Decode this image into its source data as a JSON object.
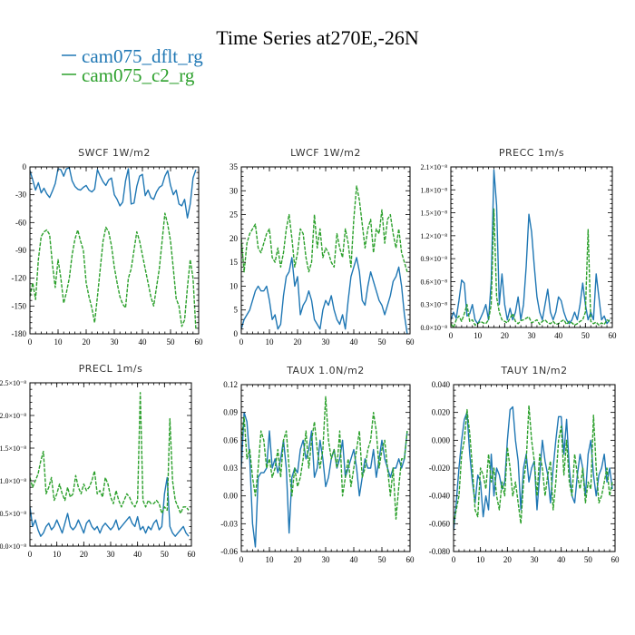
{
  "title": "Time Series at270E,-26N",
  "legend": [
    {
      "name": "cam075_dflt_rg",
      "color": "#1f77b4",
      "dash": "solid"
    },
    {
      "name": "cam075_c2_rg",
      "color": "#2ca02c",
      "dash": "dashed"
    }
  ],
  "chart_data": [
    {
      "type": "line",
      "title": "SWCF   1W/m2",
      "xlim": [
        0,
        60
      ],
      "ylim": [
        -180,
        0
      ],
      "xticks": [
        0,
        10,
        20,
        30,
        40,
        50,
        60
      ],
      "yticks": [
        -180,
        -150,
        -120,
        -90,
        -60,
        -30,
        0
      ],
      "ytick_labels": [
        "-180",
        "-150",
        "-120",
        "-90",
        "-60",
        "-30",
        "0"
      ],
      "series": [
        {
          "name": "cam075_dflt_rg",
          "color": "#1f77b4",
          "dash": "solid",
          "values": [
            -4,
            -14,
            -25,
            -17,
            -28,
            -23,
            -29,
            -33,
            -26,
            -18,
            -2,
            -3,
            -10,
            -2,
            -1,
            -15,
            -21,
            -24,
            -25,
            -22,
            -20,
            -25,
            -27,
            -24,
            -3,
            -10,
            -16,
            -20,
            -14,
            -12,
            -30,
            -35,
            -42,
            -38,
            -15,
            -2,
            -40,
            -39,
            -21,
            -10,
            -8,
            -31,
            -25,
            -33,
            -35,
            -27,
            -22,
            -20,
            -10,
            -4,
            -20,
            -30,
            -25,
            -40,
            -42,
            -35,
            -55,
            -40,
            -12,
            -3
          ]
        },
        {
          "name": "cam075_c2_rg",
          "color": "#2ca02c",
          "dash": "dashed",
          "values": [
            -140,
            -125,
            -143,
            -100,
            -75,
            -70,
            -68,
            -73,
            -105,
            -130,
            -100,
            -120,
            -147,
            -135,
            -120,
            -95,
            -78,
            -68,
            -80,
            -90,
            -125,
            -140,
            -152,
            -168,
            -140,
            -110,
            -80,
            -65,
            -70,
            -85,
            -108,
            -125,
            -140,
            -148,
            -152,
            -120,
            -110,
            -90,
            -70,
            -80,
            -95,
            -110,
            -125,
            -140,
            -150,
            -130,
            -110,
            -80,
            -50,
            -62,
            -80,
            -110,
            -142,
            -150,
            -172,
            -165,
            -130,
            -100,
            -120,
            -175
          ]
        }
      ]
    },
    {
      "type": "line",
      "title": "LWCF   1W/m2",
      "xlim": [
        0,
        60
      ],
      "ylim": [
        0,
        35
      ],
      "xticks": [
        0,
        10,
        20,
        30,
        40,
        50,
        60
      ],
      "yticks": [
        0,
        5,
        10,
        15,
        20,
        25,
        30,
        35
      ],
      "ytick_labels": [
        "0",
        "5",
        "10",
        "15",
        "20",
        "25",
        "30",
        "35"
      ],
      "series": [
        {
          "name": "cam075_dflt_rg",
          "color": "#1f77b4",
          "dash": "solid",
          "values": [
            1,
            3,
            4,
            5,
            7,
            9,
            10,
            9,
            9,
            10,
            7,
            3,
            4,
            1,
            2,
            8,
            12,
            13,
            16,
            10,
            12,
            4,
            6,
            7,
            9,
            7,
            3,
            2,
            1,
            5,
            7,
            6,
            8,
            5,
            3,
            2,
            4,
            1,
            7,
            12,
            14,
            16,
            13,
            7,
            6,
            10,
            13,
            11,
            9,
            7,
            6,
            4,
            6,
            8,
            11,
            12,
            14,
            10,
            4,
            0
          ]
        },
        {
          "name": "cam075_c2_rg",
          "color": "#2ca02c",
          "dash": "dashed",
          "values": [
            20,
            13,
            19,
            21,
            22,
            23,
            18,
            17,
            19,
            21,
            22,
            16,
            15,
            18,
            14,
            17,
            22,
            25,
            20,
            14,
            17,
            22,
            21,
            16,
            13,
            15,
            25,
            18,
            22,
            16,
            18,
            17,
            15,
            14,
            21,
            18,
            16,
            22,
            19,
            14,
            24,
            31,
            28,
            23,
            18,
            22,
            24,
            17,
            22,
            21,
            26,
            19,
            24,
            25,
            21,
            18,
            22,
            17,
            15,
            13
          ]
        }
      ]
    },
    {
      "type": "line",
      "title": "PRECC   1m/s",
      "xlim": [
        0,
        60
      ],
      "ylim": [
        0,
        2.1e-08
      ],
      "xticks": [
        0,
        10,
        20,
        30,
        40,
        50,
        60
      ],
      "yticks": [
        0,
        3e-09,
        6e-09,
        9e-09,
        1.2e-08,
        1.5e-08,
        1.8e-08,
        2.1e-08
      ],
      "ytick_labels": [
        "0.0×10⁻⁸",
        "0.3×10⁻⁸",
        "0.6×10⁻⁸",
        "0.9×10⁻⁸",
        "1.2×10⁻⁸",
        "1.5×10⁻⁸",
        "1.8×10⁻⁸",
        "2.1×10⁻⁸"
      ],
      "series": [
        {
          "name": "cam075_dflt_rg",
          "color": "#1f77b4",
          "dash": "solid",
          "values": [
            1e-09,
            2e-09,
            1.2e-09,
            3.5e-09,
            6.2e-09,
            5.8e-09,
            1.5e-09,
            1.8e-09,
            3e-09,
            1e-09,
            5e-10,
            1.2e-09,
            2e-09,
            3e-09,
            1e-09,
            6e-09,
            2.06e-08,
            1.6e-08,
            3e-09,
            7e-09,
            3e-09,
            1e-09,
            2.5e-09,
            1e-09,
            2e-09,
            4e-09,
            1e-09,
            3e-09,
            8e-09,
            1.48e-08,
            1.25e-08,
            8e-09,
            4e-09,
            2e-09,
            1e-09,
            3e-09,
            5e-09,
            2e-09,
            1e-09,
            2e-09,
            4e-09,
            3.5e-09,
            2e-09,
            1e-09,
            5e-10,
            1e-09,
            2e-09,
            1e-09,
            3e-09,
            5.8e-09,
            3e-09,
            1e-09,
            2e-09,
            1e-09,
            7e-09,
            4e-09,
            1e-09,
            1.5e-09,
            5e-10,
            1e-09
          ]
        },
        {
          "name": "cam075_c2_rg",
          "color": "#2ca02c",
          "dash": "dashed",
          "values": [
            5e-10,
            0.0,
            1e-09,
            1.5e-09,
            8e-10,
            1.8e-09,
            3e-09,
            8e-10,
            1e-09,
            3e-10,
            5e-10,
            8e-10,
            6e-10,
            5e-10,
            1e-09,
            3e-09,
            1.55e-08,
            4e-09,
            2e-09,
            1e-09,
            8e-10,
            6e-10,
            1.2e-09,
            1.8e-09,
            8e-10,
            5e-10,
            9e-10,
            1e-09,
            1.2e-09,
            1.4e-09,
            6e-10,
            8e-10,
            1e-09,
            4e-10,
            8e-10,
            1e-09,
            6e-10,
            5e-10,
            8e-10,
            4e-10,
            5e-10,
            8e-10,
            1e-09,
            4e-10,
            8e-10,
            6e-10,
            3e-10,
            5e-10,
            8e-10,
            1e-09,
            2e-09,
            1.28e-08,
            8e-10,
            5e-10,
            7e-10,
            3e-10,
            6e-10,
            4e-10,
            1e-09,
            8e-10
          ]
        }
      ]
    },
    {
      "type": "line",
      "title": "PRECL   1m/s",
      "xlim": [
        0,
        60
      ],
      "ylim": [
        0,
        2.5e-08
      ],
      "xticks": [
        0,
        10,
        20,
        30,
        40,
        50,
        60
      ],
      "yticks": [
        0,
        5e-09,
        1e-08,
        1.5e-08,
        2e-08,
        2.5e-08
      ],
      "ytick_labels": [
        "0.0×10⁻⁸",
        "0.5×10⁻⁸",
        "1.0×10⁻⁸",
        "1.5×10⁻⁸",
        "2.0×10⁻⁸",
        "2.5×10⁻⁸"
      ],
      "series": [
        {
          "name": "cam075_dflt_rg",
          "color": "#1f77b4",
          "dash": "solid",
          "values": [
            6e-09,
            3e-09,
            4e-09,
            2.5e-09,
            1.5e-09,
            2e-09,
            3e-09,
            3.5e-09,
            2.5e-09,
            3e-09,
            4e-09,
            3e-09,
            2e-09,
            3.5e-09,
            5e-09,
            3e-09,
            2.5e-09,
            3e-09,
            4e-09,
            3e-09,
            2e-09,
            3.5e-09,
            4e-09,
            3e-09,
            2.5e-09,
            3e-09,
            2e-09,
            3e-09,
            3.5e-09,
            3e-09,
            2.5e-09,
            3e-09,
            4e-09,
            2.5e-09,
            3e-09,
            3.5e-09,
            4e-09,
            4.5e-09,
            3.5e-09,
            3e-09,
            4.5e-09,
            2.5e-09,
            3e-09,
            2e-09,
            3e-09,
            2.5e-09,
            3.5e-09,
            4e-09,
            2.5e-09,
            3e-09,
            8e-09,
            1.05e-08,
            3e-09,
            2e-09,
            1.5e-09,
            2e-09,
            2.5e-09,
            3e-09,
            2e-09,
            1.5e-09
          ]
        },
        {
          "name": "cam075_c2_rg",
          "color": "#2ca02c",
          "dash": "dashed",
          "values": [
            1.05e-08,
            9e-09,
            1e-08,
            1.1e-08,
            1.3e-08,
            1.45e-08,
            8e-09,
            9e-09,
            1.05e-08,
            7e-09,
            8e-09,
            9.5e-09,
            8e-09,
            7e-09,
            9e-09,
            7.5e-09,
            8e-09,
            1.08e-08,
            9e-09,
            8e-09,
            9.5e-09,
            8.5e-09,
            9e-09,
            1e-08,
            1.15e-08,
            8e-09,
            8.5e-09,
            7.5e-09,
            1.05e-08,
            9.5e-09,
            7.5e-09,
            6.5e-09,
            8.5e-09,
            7e-09,
            6e-09,
            7e-09,
            8e-09,
            7.5e-09,
            6.5e-09,
            6e-09,
            7e-09,
            2.35e-08,
            7e-09,
            6e-09,
            7e-09,
            6.5e-09,
            6.5e-09,
            7e-09,
            6.5e-09,
            5e-09,
            6e-09,
            5.5e-09,
            1.95e-08,
            1e-08,
            7e-09,
            6e-09,
            5e-09,
            6e-09,
            6e-09,
            5.5e-09
          ]
        }
      ]
    },
    {
      "type": "line",
      "title": "TAUX   1.0N/m2",
      "xlim": [
        0,
        60
      ],
      "ylim": [
        -0.06,
        0.12
      ],
      "xticks": [
        0,
        10,
        20,
        30,
        40,
        50,
        60
      ],
      "yticks": [
        -0.06,
        -0.03,
        0.0,
        0.03,
        0.06,
        0.09,
        0.12
      ],
      "ytick_labels": [
        "-0.06",
        "-0.03",
        "0.00",
        "0.03",
        "0.06",
        "0.09",
        "0.12"
      ],
      "series": [
        {
          "name": "cam075_dflt_rg",
          "color": "#1f77b4",
          "dash": "solid",
          "values": [
            0.03,
            0.09,
            0.08,
            0.04,
            -0.03,
            -0.055,
            0.02,
            0.025,
            0.025,
            0.03,
            0.07,
            0.03,
            0.04,
            0.025,
            0.04,
            0.06,
            0.03,
            -0.04,
            0.02,
            0.03,
            0.025,
            0.05,
            0.06,
            0.04,
            0.05,
            0.07,
            0.02,
            0.03,
            0.06,
            0.04,
            0.01,
            0.02,
            0.04,
            0.05,
            0.03,
            0.04,
            0.06,
            0.02,
            0.03,
            0.04,
            0.05,
            0.03,
            0.0,
            0.02,
            0.04,
            0.03,
            0.03,
            0.05,
            0.02,
            0.04,
            0.06,
            0.04,
            0.03,
            0.02,
            0.03,
            0.03,
            0.04,
            0.03,
            0.04,
            0.07
          ]
        },
        {
          "name": "cam075_c2_rg",
          "color": "#2ca02c",
          "dash": "dashed",
          "values": [
            0.06,
            0.085,
            0.04,
            0.05,
            0.02,
            0.0,
            0.03,
            0.07,
            0.06,
            0.03,
            0.04,
            0.02,
            0.03,
            0.05,
            0.02,
            0.06,
            0.07,
            0.03,
            0.0,
            0.03,
            0.01,
            0.02,
            0.04,
            0.07,
            0.03,
            0.06,
            0.08,
            0.05,
            0.03,
            0.05,
            0.107,
            0.06,
            0.04,
            0.05,
            0.03,
            0.07,
            0.0,
            0.02,
            0.04,
            0.01,
            0.03,
            0.05,
            0.07,
            0.02,
            0.03,
            0.05,
            0.06,
            0.09,
            0.07,
            0.03,
            0.05,
            0.06,
            0.03,
            0.0,
            0.03,
            -0.025,
            0.01,
            0.04,
            0.04,
            0.07
          ]
        }
      ]
    },
    {
      "type": "line",
      "title": "TAUY   1N/m2",
      "xlim": [
        0,
        60
      ],
      "ylim": [
        -0.08,
        0.04
      ],
      "xticks": [
        0,
        10,
        20,
        30,
        40,
        50,
        60
      ],
      "yticks": [
        -0.08,
        -0.06,
        -0.04,
        -0.02,
        0.0,
        0.02,
        0.04
      ],
      "ytick_labels": [
        "-0.080",
        "-0.060",
        "-0.040",
        "-0.020",
        "0.000",
        "0.020",
        "0.040"
      ],
      "series": [
        {
          "name": "cam075_dflt_rg",
          "color": "#1f77b4",
          "dash": "solid",
          "values": [
            -0.065,
            -0.045,
            -0.02,
            0.0,
            0.015,
            0.02,
            -0.01,
            -0.03,
            -0.045,
            -0.025,
            -0.03,
            -0.055,
            -0.04,
            -0.05,
            -0.01,
            -0.04,
            -0.02,
            -0.025,
            -0.035,
            -0.03,
            0.0,
            0.022,
            0.024,
            0.0,
            -0.015,
            -0.05,
            -0.02,
            -0.01,
            -0.03,
            -0.02,
            -0.015,
            -0.05,
            -0.025,
            0.0,
            -0.015,
            -0.025,
            -0.045,
            -0.02,
            0.0,
            0.017,
            0.017,
            -0.01,
            0.015,
            -0.02,
            -0.04,
            -0.045,
            -0.025,
            -0.01,
            -0.02,
            -0.04,
            -0.01,
            0.0,
            -0.025,
            -0.04,
            -0.025,
            -0.02,
            -0.01,
            -0.03,
            -0.02,
            -0.035
          ]
        },
        {
          "name": "cam075_c2_rg",
          "color": "#2ca02c",
          "dash": "dashed",
          "values": [
            -0.06,
            -0.05,
            -0.04,
            -0.01,
            0.0,
            0.022,
            0.005,
            -0.02,
            -0.05,
            -0.055,
            -0.02,
            -0.025,
            -0.035,
            -0.01,
            -0.03,
            -0.02,
            -0.04,
            -0.05,
            -0.03,
            -0.04,
            -0.005,
            -0.02,
            -0.04,
            -0.03,
            -0.045,
            -0.06,
            -0.03,
            -0.015,
            0.025,
            0.0,
            -0.015,
            -0.04,
            -0.01,
            -0.02,
            -0.04,
            -0.025,
            -0.015,
            -0.05,
            -0.03,
            0.0,
            0.01,
            -0.025,
            0.0,
            -0.03,
            -0.04,
            -0.01,
            -0.025,
            -0.035,
            -0.02,
            -0.045,
            -0.03,
            -0.035,
            0.018,
            -0.02,
            -0.045,
            -0.04,
            -0.03,
            -0.02,
            -0.04,
            -0.03
          ]
        }
      ]
    }
  ]
}
